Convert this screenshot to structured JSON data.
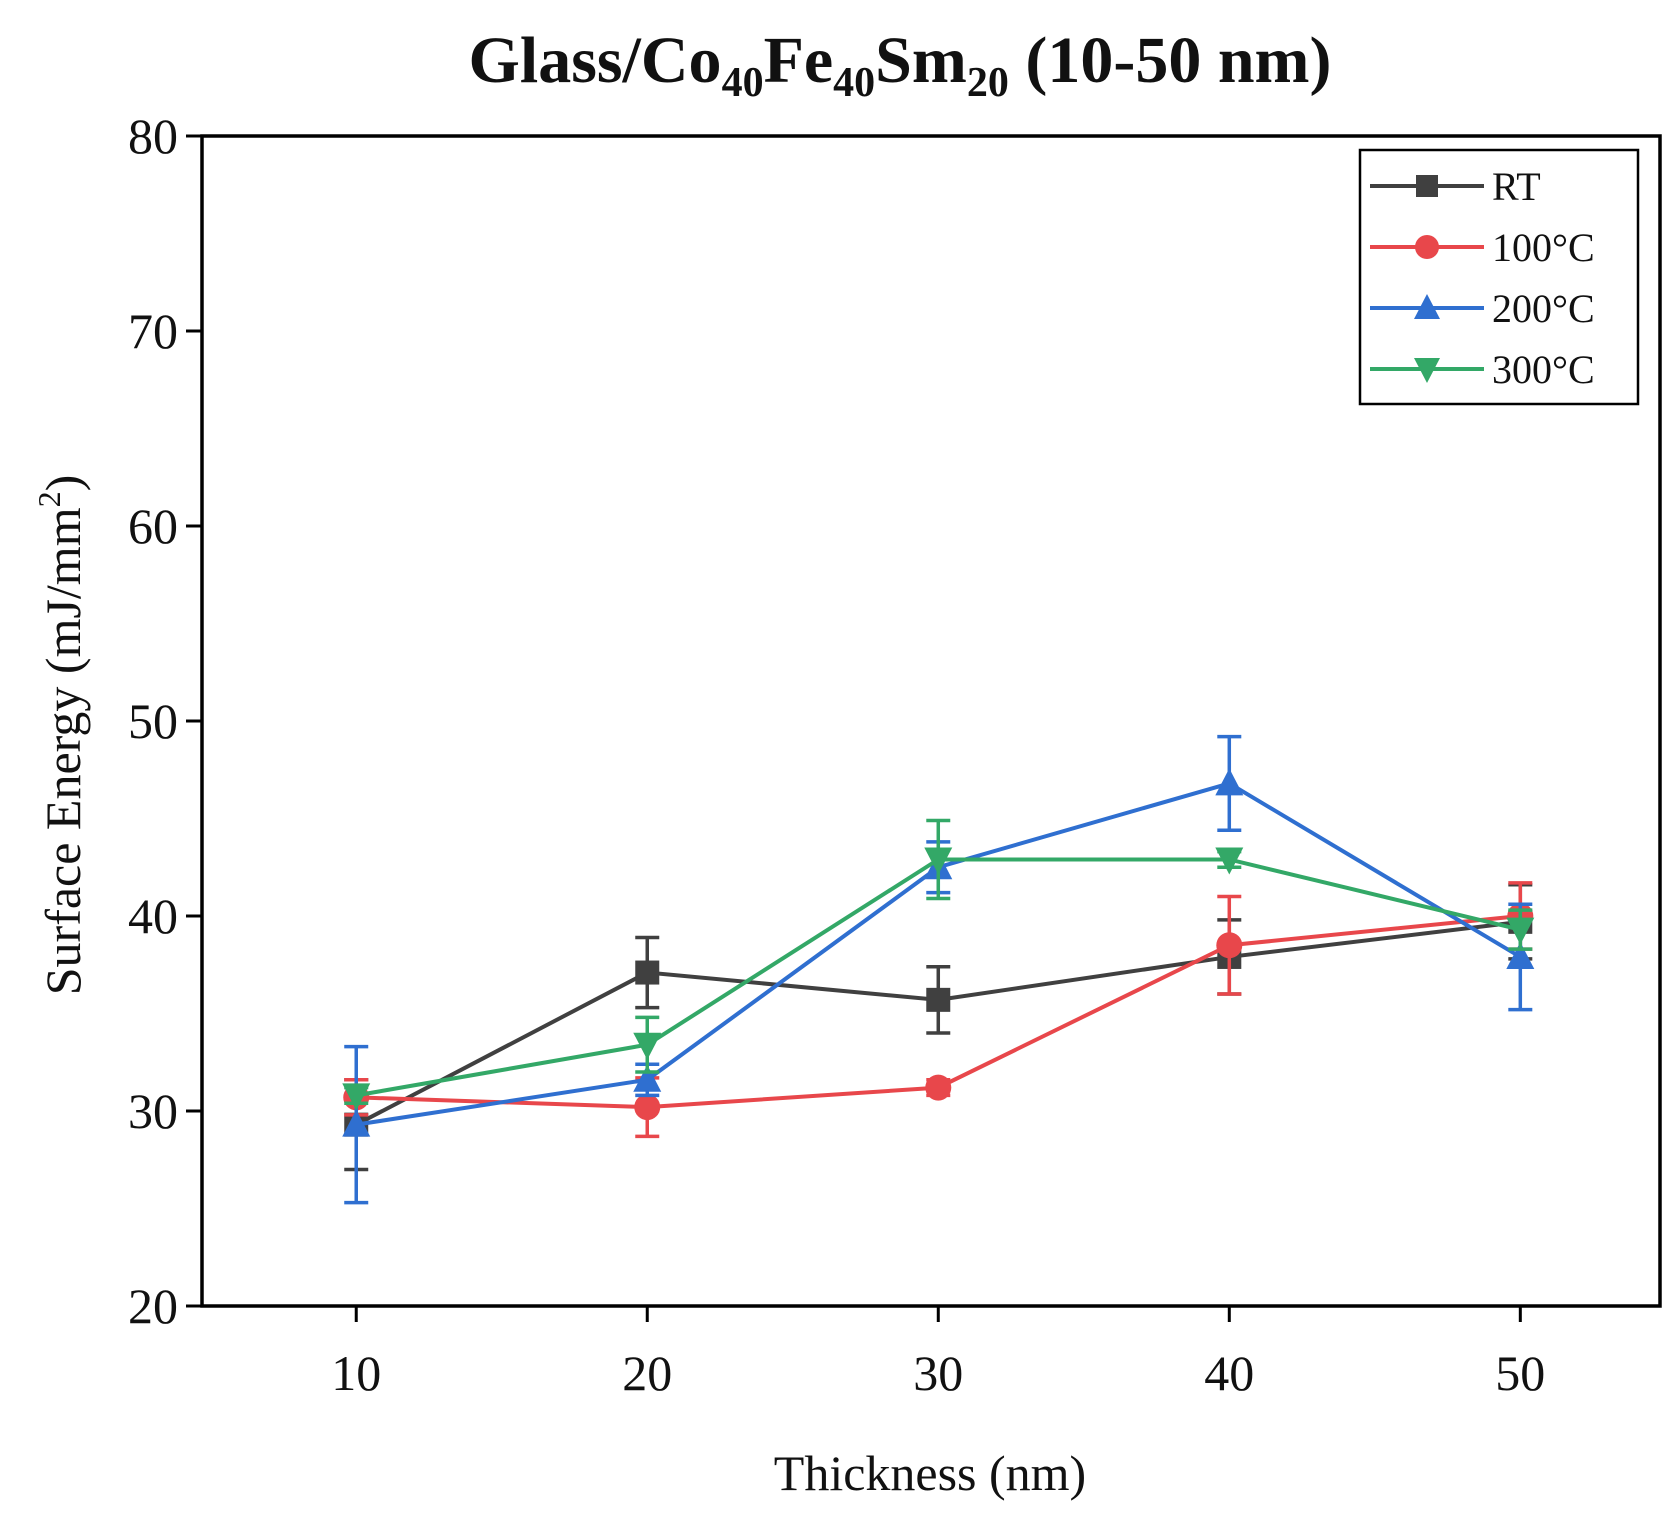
{
  "chart_data": {
    "type": "line",
    "title": "Glass/Co40Fe40Sm20 (10-50 nm)",
    "title_parts": [
      {
        "text": "Glass/Co",
        "sub": false
      },
      {
        "text": "40",
        "sub": true
      },
      {
        "text": "Fe",
        "sub": false
      },
      {
        "text": "40",
        "sub": true
      },
      {
        "text": "Sm",
        "sub": false
      },
      {
        "text": "20",
        "sub": true
      },
      {
        "text": " (10-50 nm)",
        "sub": false
      }
    ],
    "xlabel": "Thickness (nm)",
    "ylabel": "Surface Energy (mJ/mm",
    "ylabel_sup": "2",
    "ylabel_close": ")",
    "x": [
      10,
      20,
      30,
      40,
      50
    ],
    "xlim": [
      4.7,
      54.8
    ],
    "ylim": [
      20,
      80
    ],
    "xticks": [
      10,
      20,
      30,
      40,
      50
    ],
    "yticks": [
      20,
      30,
      40,
      50,
      60,
      70,
      80
    ],
    "legend_position": "top-right",
    "series": [
      {
        "name": "RT",
        "color": "#404040",
        "marker": "square",
        "values": [
          29.3,
          37.1,
          35.7,
          37.9,
          39.7
        ],
        "errors": [
          2.3,
          1.8,
          1.7,
          1.9,
          1.9
        ]
      },
      {
        "name": "100°C",
        "color": "#e8474b",
        "marker": "circle",
        "values": [
          30.7,
          30.2,
          31.2,
          38.5,
          40.0
        ],
        "errors": [
          0.9,
          1.5,
          0.4,
          2.5,
          1.7
        ]
      },
      {
        "name": "200°C",
        "color": "#2f6fd0",
        "marker": "triangle-up",
        "values": [
          29.3,
          31.6,
          42.5,
          46.8,
          37.9
        ],
        "errors": [
          4.0,
          0.8,
          1.3,
          2.4,
          2.7
        ]
      },
      {
        "name": "300°C",
        "color": "#33a867",
        "marker": "triangle-down",
        "values": [
          30.8,
          33.4,
          42.9,
          42.9,
          39.3
        ],
        "errors": [
          0.4,
          1.4,
          2.0,
          0.4,
          1.0
        ]
      }
    ]
  }
}
